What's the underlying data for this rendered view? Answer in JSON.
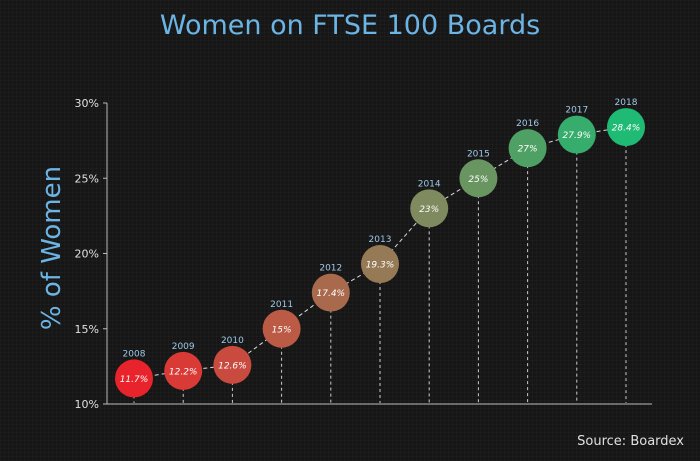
{
  "chart_data": {
    "type": "scatter",
    "title": "Women on FTSE 100 Boards",
    "xlabel": "",
    "ylabel": "% of Women",
    "source": "Source: Boardex",
    "ylim": [
      10,
      30
    ],
    "y_ticks": [
      "10%",
      "15%",
      "20%",
      "25%",
      "30%"
    ],
    "x": [
      "2008",
      "2009",
      "2010",
      "2011",
      "2012",
      "2013",
      "2014",
      "2015",
      "2016",
      "2017",
      "2018"
    ],
    "values": [
      11.7,
      12.2,
      12.6,
      15,
      17.4,
      19.3,
      23,
      25,
      27,
      27.9,
      28.4
    ],
    "data_labels": [
      "11.7%",
      "12.2%",
      "12.6%",
      "15%",
      "17.4%",
      "19.3%",
      "23%",
      "25%",
      "27%",
      "27.9%",
      "28.4%"
    ],
    "point_colors": [
      "#e8232b",
      "#d93a36",
      "#c94a3e",
      "#bb5a45",
      "#a9694d",
      "#967a56",
      "#7f8a5e",
      "#689560",
      "#4ea064",
      "#36ad6c",
      "#1fba74"
    ],
    "colors": {
      "title": "#6cb4e4",
      "ylabel": "#6cb4e4",
      "text": "#e0e0e0",
      "axis": "#bbbbbb"
    },
    "grid": false,
    "legend": "none"
  }
}
